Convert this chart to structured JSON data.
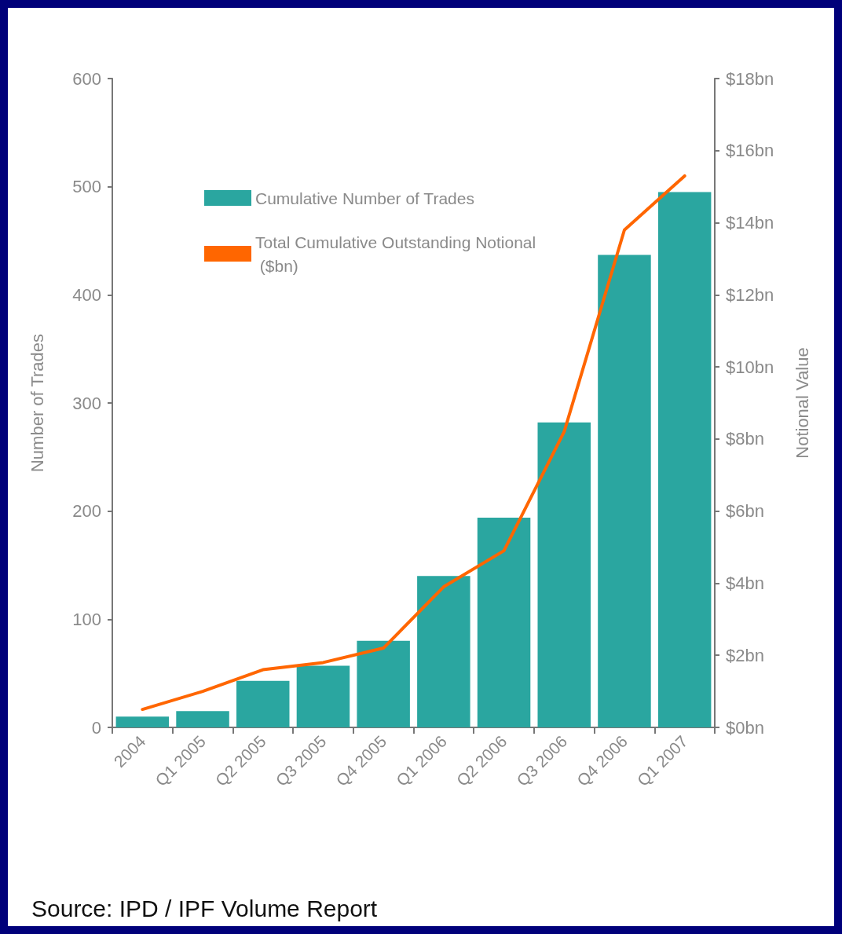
{
  "chart_data": {
    "type": "bar",
    "categories": [
      "2004",
      "Q1 2005",
      "Q2 2005",
      "Q3 2005",
      "Q4 2005",
      "Q1 2006",
      "Q2 2006",
      "Q3 2006",
      "Q4 2006",
      "Q1 2007"
    ],
    "series": [
      {
        "name": "Cumulative Number of Trades",
        "color": "#2aa6a0",
        "values": [
          10,
          15,
          43,
          57,
          80,
          140,
          194,
          282,
          437,
          495
        ]
      },
      {
        "name": "Total Cumulative Outstanding Notional ($bn)",
        "type": "line",
        "axis": "y2",
        "color": "#ff6600",
        "values": [
          0.5,
          1.0,
          1.6,
          1.8,
          2.2,
          3.9,
          4.9,
          8.2,
          13.8,
          15.3
        ]
      }
    ],
    "ylabel": "Number of Trades",
    "y2label": "Notional Value",
    "ylim": [
      0,
      600
    ],
    "yticks": [
      0,
      100,
      200,
      300,
      400,
      500,
      600
    ],
    "y2lim": [
      0,
      18
    ],
    "y2ticks": [
      {
        "value": 0,
        "label": "$0bn"
      },
      {
        "value": 2,
        "label": "$2bn"
      },
      {
        "value": 4,
        "label": "$4bn"
      },
      {
        "value": 6,
        "label": "$6bn"
      },
      {
        "value": 8,
        "label": "$8bn"
      },
      {
        "value": 10,
        "label": "$10bn"
      },
      {
        "value": 12,
        "label": "$12bn"
      },
      {
        "value": 14,
        "label": "$14bn"
      },
      {
        "value": 16,
        "label": "$16bn"
      },
      {
        "value": 18,
        "label": "$18bn"
      }
    ],
    "grid": false,
    "legend": "top left",
    "marker": "none",
    "line_style": "solid",
    "annotations": [
      "Source: IPD / IPF Volume Report"
    ]
  }
}
